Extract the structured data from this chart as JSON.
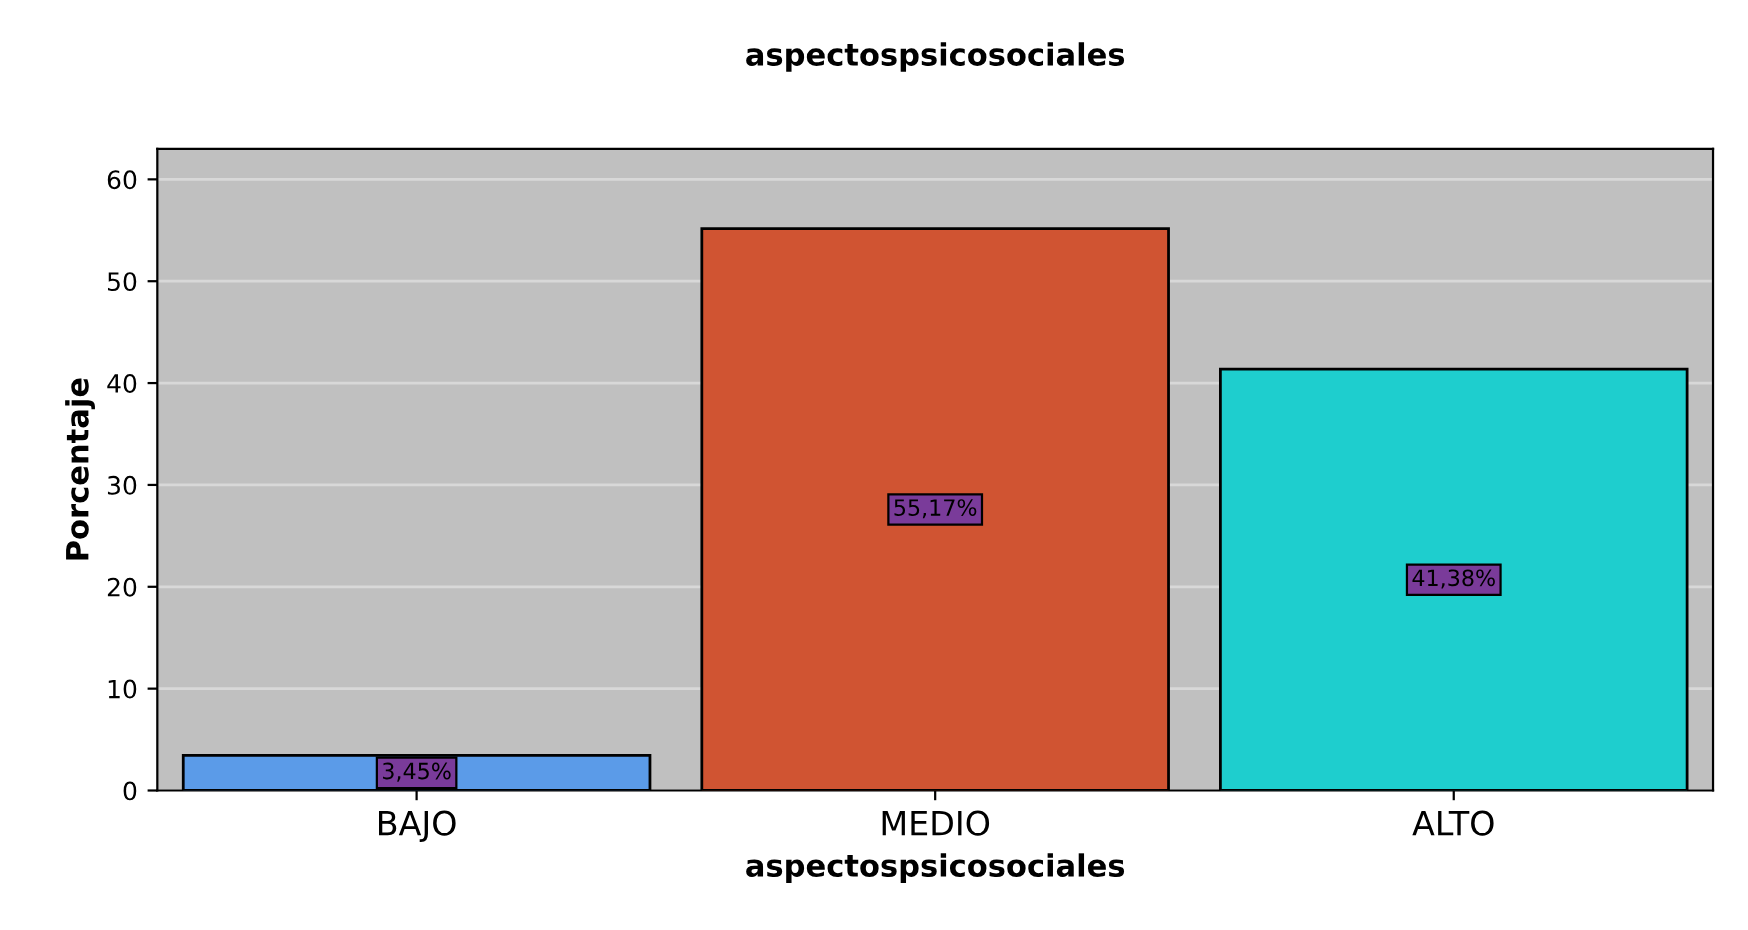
{
  "chart_data": {
    "type": "bar",
    "title": "aspectospsicosociales",
    "xlabel": "aspectospsicosociales",
    "ylabel": "Porcentaje",
    "categories": [
      "BAJO",
      "MEDIO",
      "ALTO"
    ],
    "values": [
      3.45,
      55.17,
      41.38
    ],
    "colors": [
      "#5b9be8",
      "#d05432",
      "#1ecece"
    ],
    "value_labels": [
      "3,45%",
      "55,17%",
      "41,38%"
    ],
    "ylim": [
      0,
      63
    ],
    "yticks": [
      0,
      10,
      20,
      30,
      40,
      50,
      60
    ],
    "grid": "y"
  }
}
